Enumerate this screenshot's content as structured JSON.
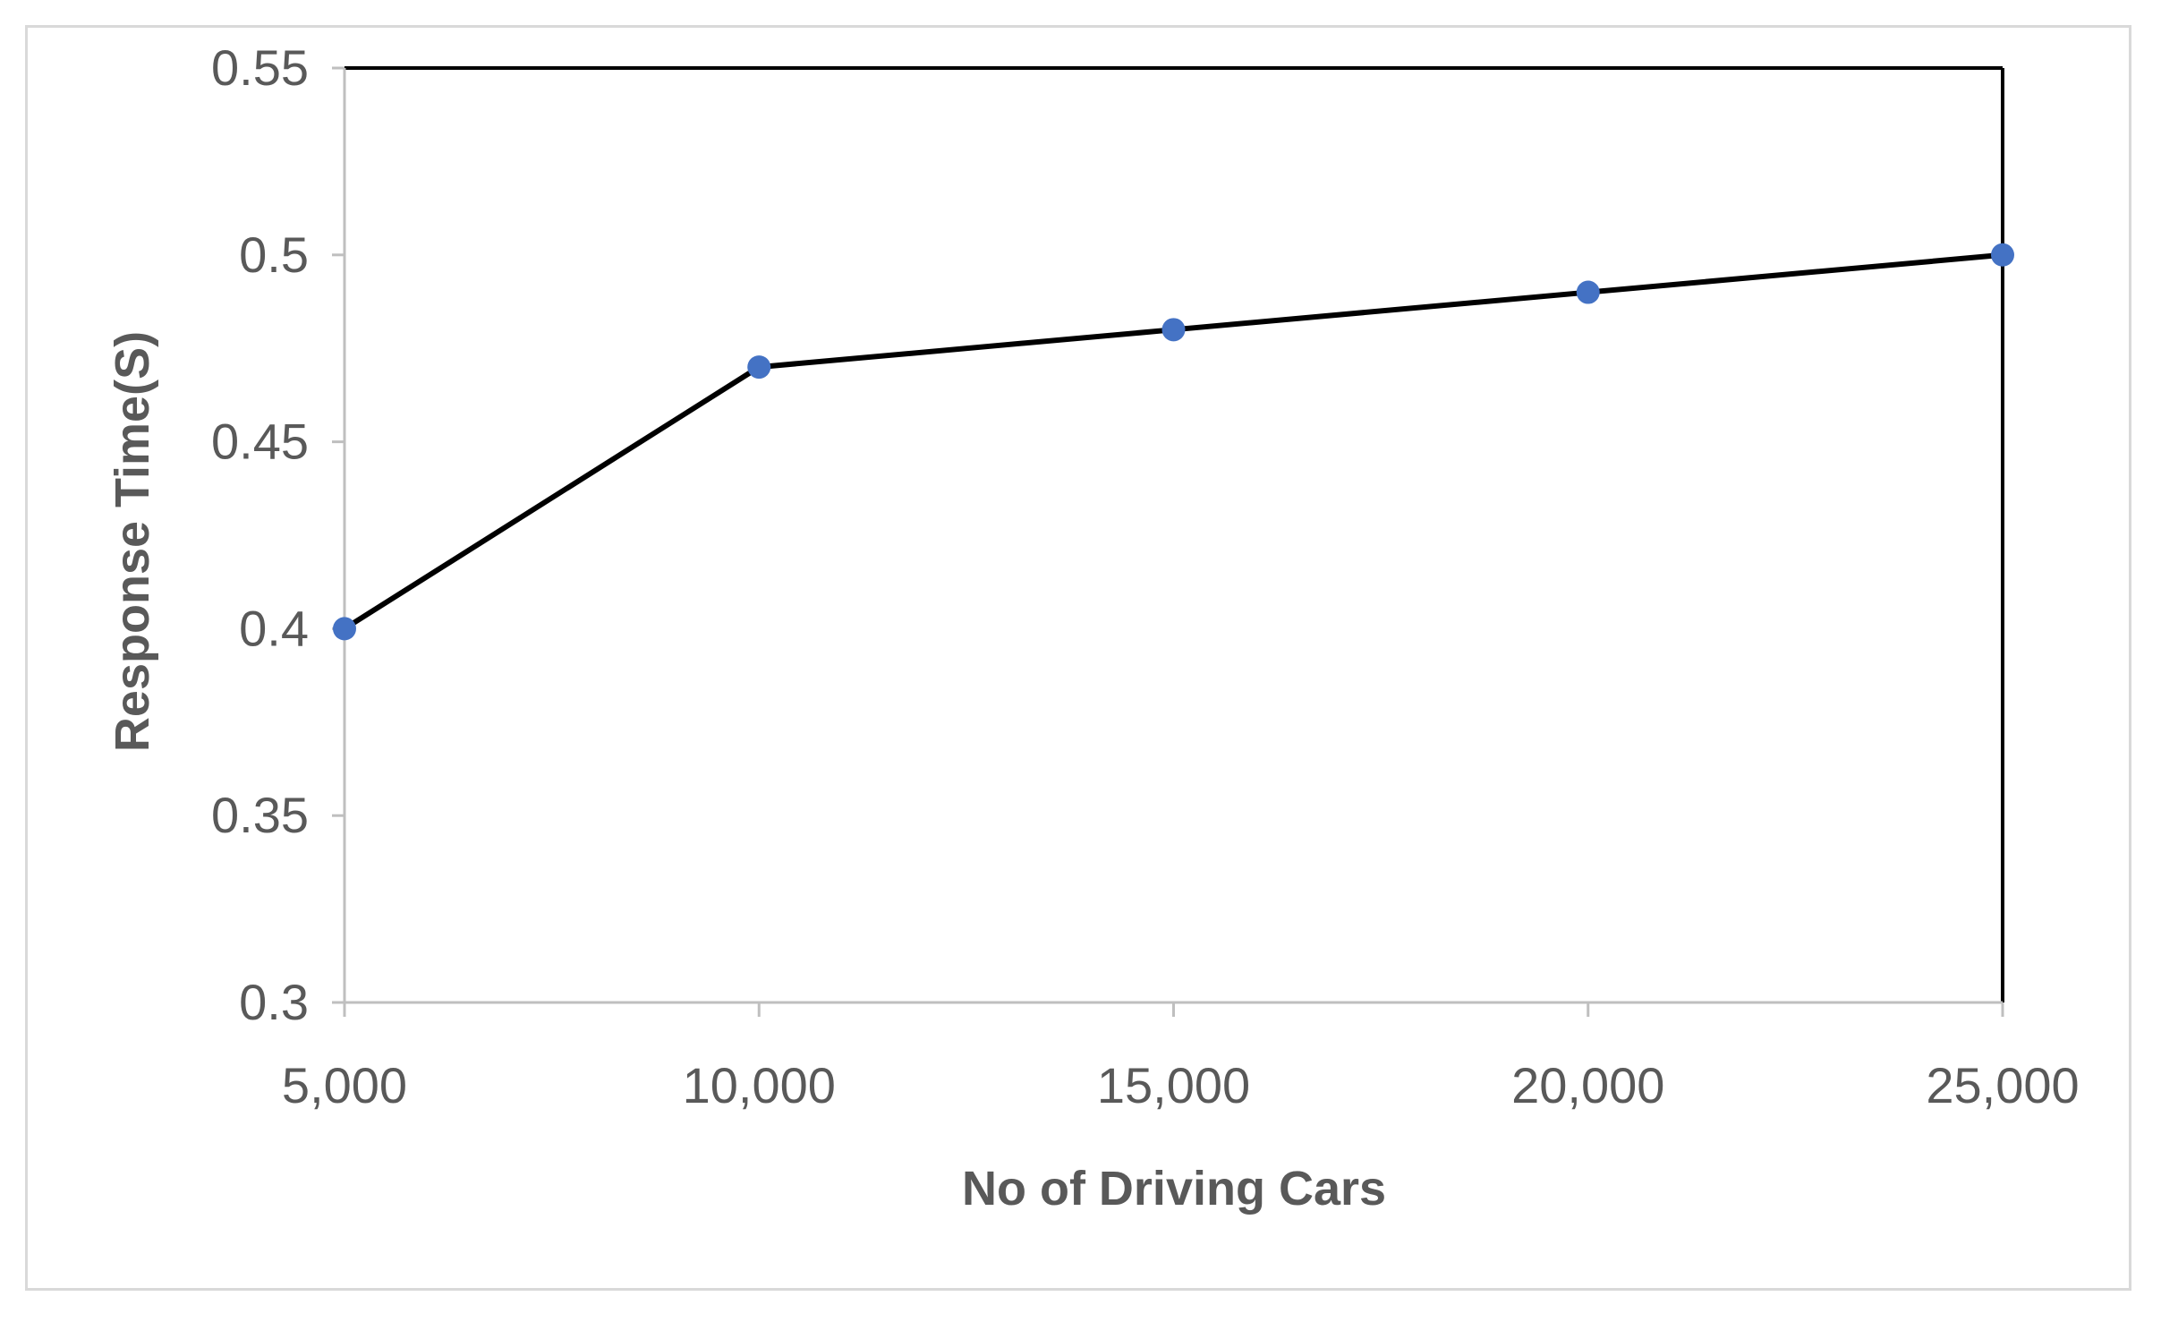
{
  "chart_data": {
    "type": "line",
    "title": "",
    "xlabel": "No of Driving Cars",
    "ylabel": "Response Time(S)",
    "x": [
      5000,
      10000,
      15000,
      20000,
      25000
    ],
    "x_tick_labels": [
      "5,000",
      "10,000",
      "15,000",
      "20,000",
      "25,000"
    ],
    "y_tick_values": [
      0.3,
      0.35,
      0.4,
      0.45,
      0.5,
      0.55
    ],
    "y_tick_labels": [
      "0.3",
      "0.35",
      "0.4",
      "0.45",
      "0.5",
      "0.55"
    ],
    "series": [
      {
        "values": [
          0.4,
          0.47,
          0.48,
          0.49,
          0.5
        ],
        "line_color": "#000000",
        "marker_color": "#4472c4"
      }
    ],
    "xlim": [
      5000,
      25000
    ],
    "ylim": [
      0.3,
      0.55
    ],
    "grid": false,
    "legend": "none",
    "axis_color": "#bfbfbf",
    "box_color": "#000000"
  }
}
